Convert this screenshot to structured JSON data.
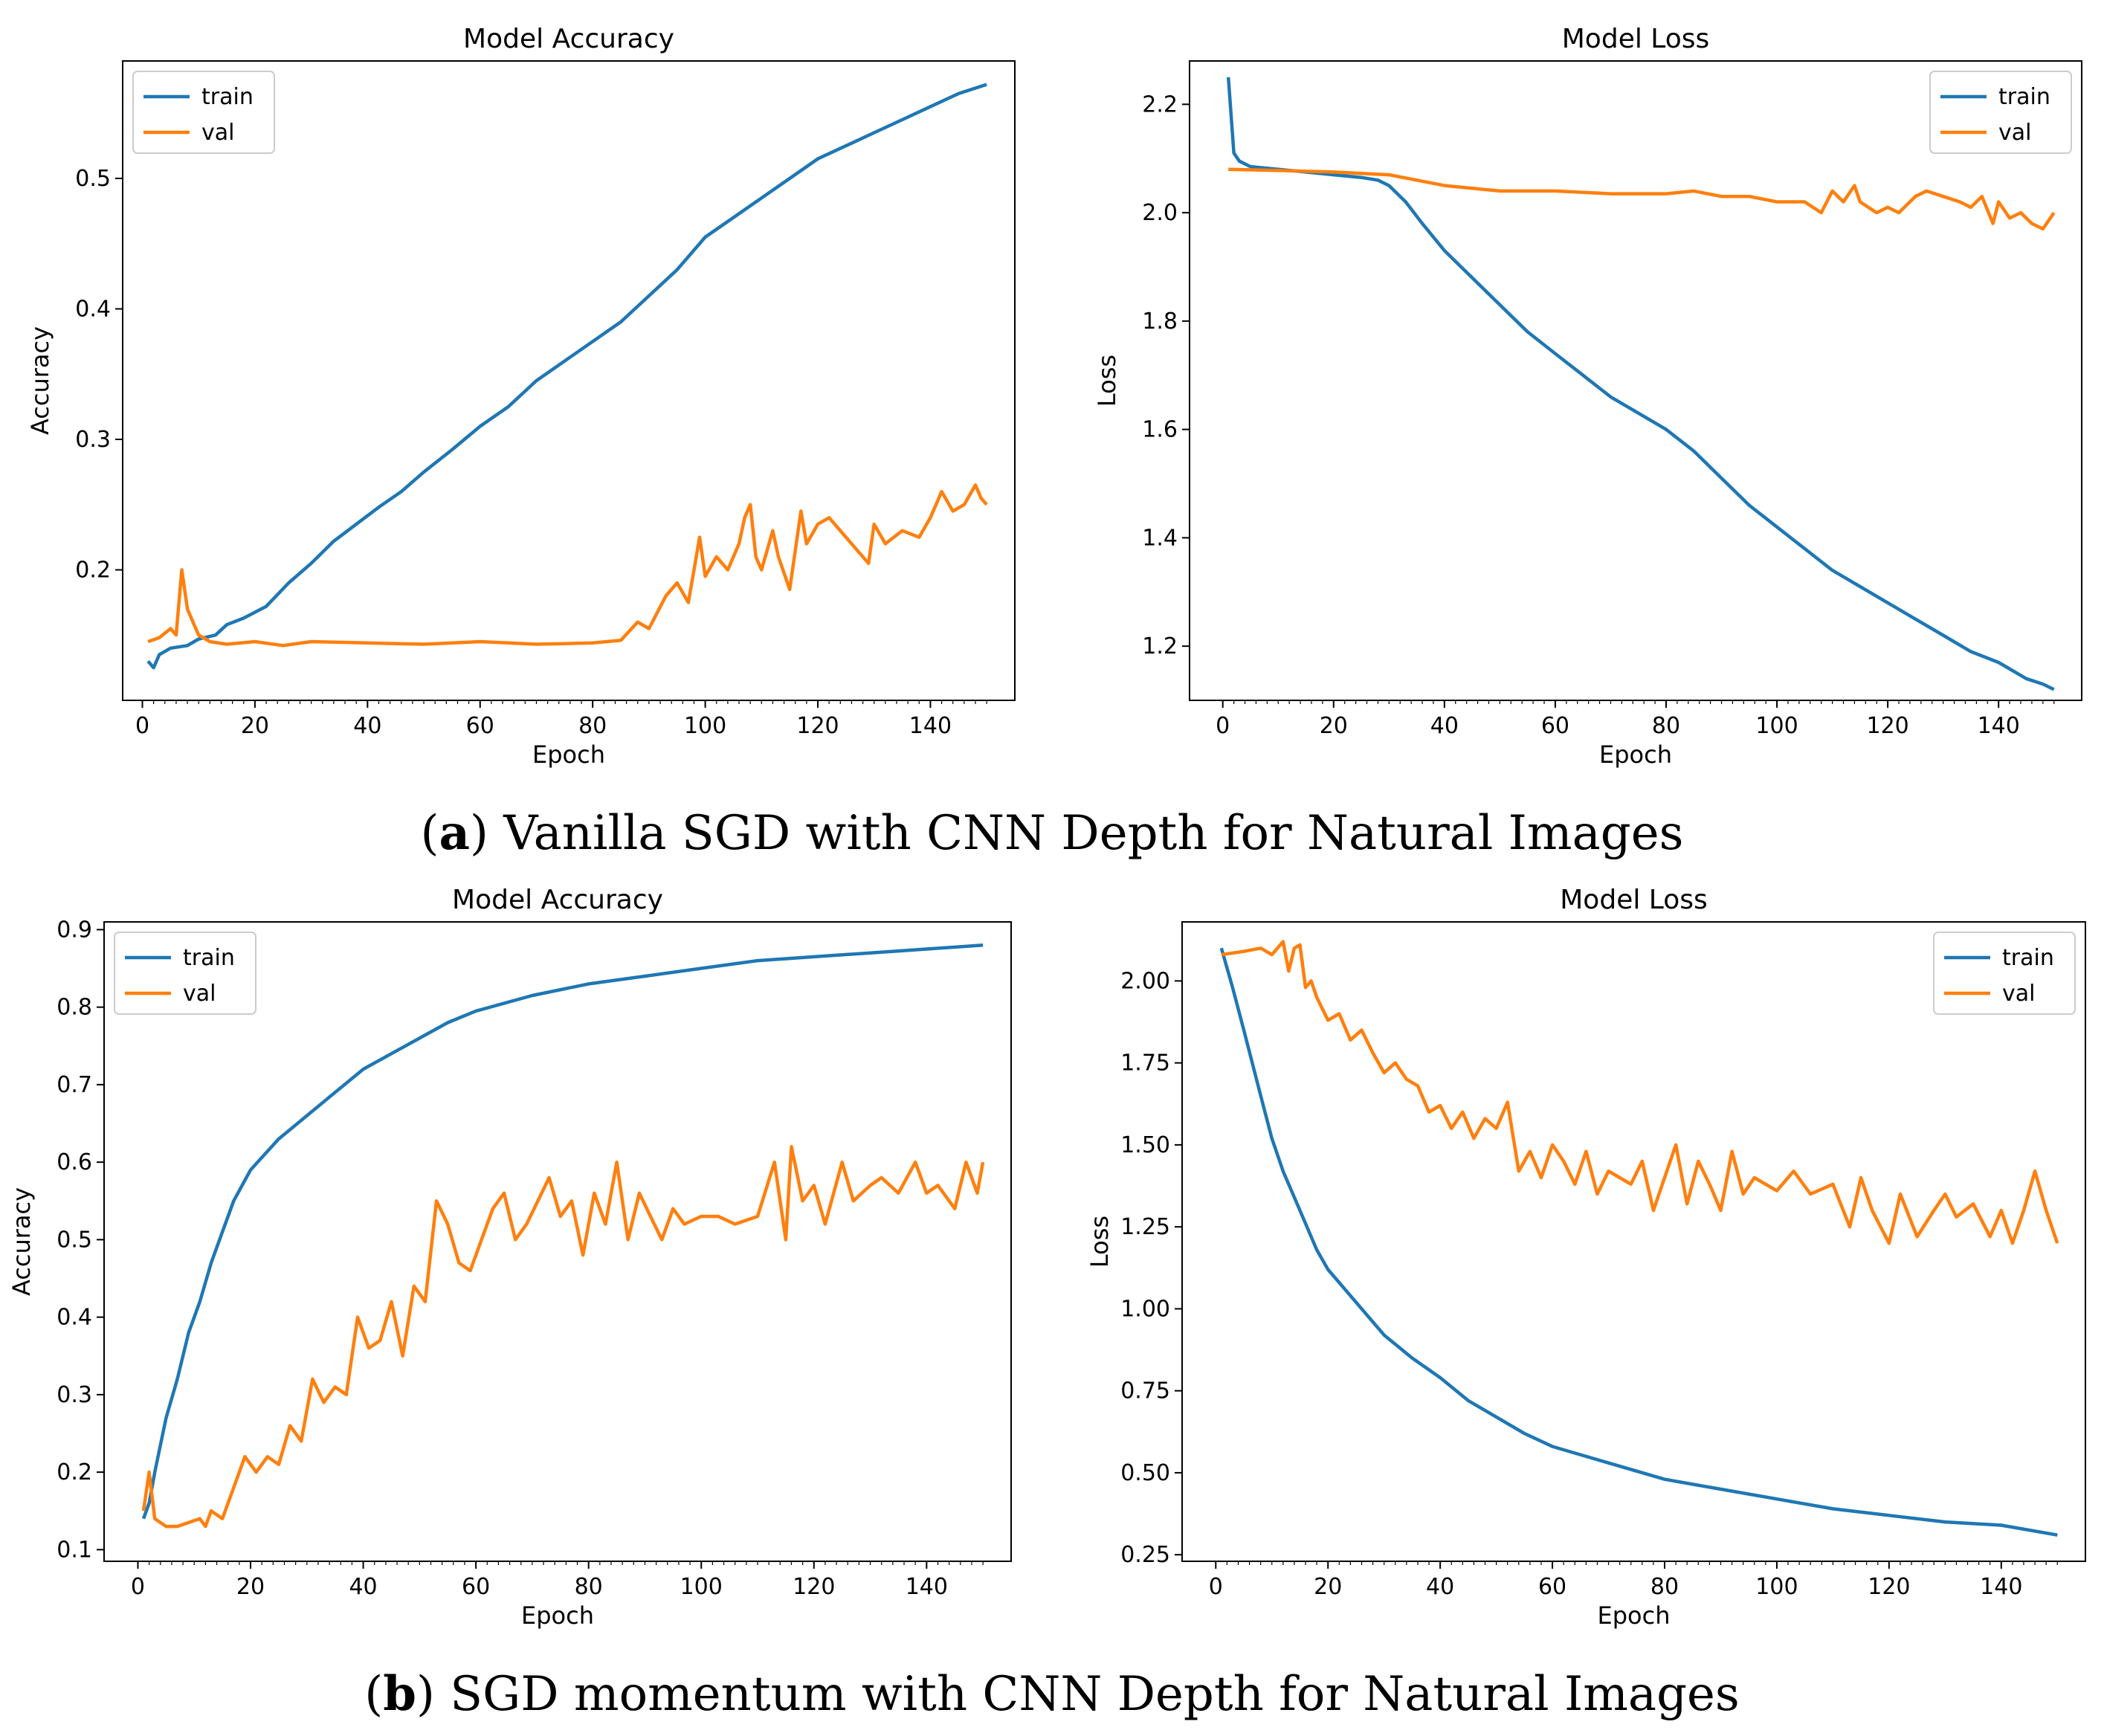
{
  "captions": {
    "a": {
      "letter": "a",
      "text": " Vanilla SGD with CNN Depth for Natural Images"
    },
    "b": {
      "letter": "b",
      "text": " SGD momentum with CNN Depth for Natural Images"
    }
  },
  "colors": {
    "train": "#1f77b4",
    "val": "#ff7f0e"
  },
  "chart_data": [
    {
      "id": "a-accuracy",
      "type": "line",
      "title": "Model Accuracy",
      "xlabel": "Epoch",
      "ylabel": "Accuracy",
      "xlim": [
        -3.5,
        155
      ],
      "ylim": [
        0.1,
        0.59
      ],
      "xticks": [
        0,
        20,
        40,
        60,
        80,
        100,
        120,
        140
      ],
      "yticks": [
        0.2,
        0.3,
        0.4,
        0.5
      ],
      "ytick_labels": [
        "0.2",
        "0.3",
        "0.4",
        "0.5"
      ],
      "legend": "upper-left",
      "series": [
        {
          "name": "train",
          "x": [
            1,
            2,
            3,
            5,
            8,
            10,
            13,
            15,
            18,
            22,
            26,
            30,
            34,
            38,
            42,
            46,
            50,
            55,
            60,
            65,
            70,
            75,
            80,
            85,
            90,
            95,
            100,
            105,
            110,
            115,
            120,
            125,
            130,
            135,
            140,
            145,
            150
          ],
          "y": [
            0.13,
            0.125,
            0.135,
            0.14,
            0.142,
            0.147,
            0.15,
            0.158,
            0.163,
            0.172,
            0.19,
            0.205,
            0.222,
            0.235,
            0.248,
            0.26,
            0.275,
            0.292,
            0.31,
            0.325,
            0.345,
            0.36,
            0.375,
            0.39,
            0.41,
            0.43,
            0.455,
            0.47,
            0.485,
            0.5,
            0.515,
            0.525,
            0.535,
            0.545,
            0.555,
            0.565,
            0.572
          ]
        },
        {
          "name": "val",
          "x": [
            1,
            3,
            5,
            6,
            7,
            8,
            9,
            10,
            12,
            15,
            20,
            25,
            30,
            40,
            50,
            60,
            70,
            80,
            85,
            88,
            90,
            93,
            95,
            97,
            98,
            99,
            100,
            102,
            104,
            106,
            107,
            108,
            109,
            110,
            112,
            113,
            115,
            117,
            118,
            120,
            122,
            125,
            127,
            129,
            130,
            132,
            135,
            138,
            140,
            142,
            144,
            146,
            148,
            149,
            150
          ],
          "y": [
            0.145,
            0.148,
            0.155,
            0.15,
            0.2,
            0.17,
            0.16,
            0.15,
            0.145,
            0.143,
            0.145,
            0.142,
            0.145,
            0.144,
            0.143,
            0.145,
            0.143,
            0.144,
            0.146,
            0.16,
            0.155,
            0.18,
            0.19,
            0.175,
            0.2,
            0.225,
            0.195,
            0.21,
            0.2,
            0.22,
            0.24,
            0.25,
            0.21,
            0.2,
            0.23,
            0.21,
            0.185,
            0.245,
            0.22,
            0.235,
            0.24,
            0.225,
            0.215,
            0.205,
            0.235,
            0.22,
            0.23,
            0.225,
            0.24,
            0.26,
            0.245,
            0.25,
            0.265,
            0.255,
            0.25
          ]
        }
      ]
    },
    {
      "id": "a-loss",
      "type": "line",
      "title": "Model Loss",
      "xlabel": "Epoch",
      "ylabel": "Loss",
      "xlim": [
        -6,
        155
      ],
      "ylim": [
        1.1,
        2.28
      ],
      "xticks": [
        0,
        20,
        40,
        60,
        80,
        100,
        120,
        140
      ],
      "yticks": [
        1.2,
        1.4,
        1.6,
        1.8,
        2.0,
        2.2
      ],
      "ytick_labels": [
        "1.2",
        "1.4",
        "1.6",
        "1.8",
        "2.0",
        "2.2"
      ],
      "legend": "upper-right",
      "series": [
        {
          "name": "train",
          "x": [
            1,
            2,
            3,
            5,
            10,
            15,
            20,
            25,
            28,
            30,
            33,
            36,
            40,
            45,
            50,
            55,
            60,
            65,
            70,
            75,
            80,
            85,
            90,
            95,
            100,
            105,
            110,
            115,
            120,
            125,
            130,
            135,
            140,
            145,
            148,
            150
          ],
          "y": [
            2.25,
            2.11,
            2.095,
            2.085,
            2.08,
            2.075,
            2.07,
            2.065,
            2.06,
            2.05,
            2.02,
            1.98,
            1.93,
            1.88,
            1.83,
            1.78,
            1.74,
            1.7,
            1.66,
            1.63,
            1.6,
            1.56,
            1.51,
            1.46,
            1.42,
            1.38,
            1.34,
            1.31,
            1.28,
            1.25,
            1.22,
            1.19,
            1.17,
            1.14,
            1.13,
            1.12
          ]
        },
        {
          "name": "val",
          "x": [
            1,
            10,
            20,
            30,
            35,
            40,
            50,
            60,
            70,
            80,
            85,
            90,
            95,
            100,
            105,
            108,
            110,
            112,
            114,
            115,
            118,
            120,
            122,
            125,
            127,
            130,
            133,
            135,
            137,
            139,
            140,
            142,
            144,
            146,
            148,
            150
          ],
          "y": [
            2.08,
            2.078,
            2.075,
            2.07,
            2.06,
            2.05,
            2.04,
            2.04,
            2.035,
            2.035,
            2.04,
            2.03,
            2.03,
            2.02,
            2.02,
            2.0,
            2.04,
            2.02,
            2.05,
            2.02,
            2.0,
            2.01,
            2.0,
            2.03,
            2.04,
            2.03,
            2.02,
            2.01,
            2.03,
            1.98,
            2.02,
            1.99,
            2.0,
            1.98,
            1.97,
            2.0
          ]
        }
      ]
    },
    {
      "id": "b-accuracy",
      "type": "line",
      "title": "Model Accuracy",
      "xlabel": "Epoch",
      "ylabel": "Accuracy",
      "xlim": [
        -6,
        155
      ],
      "ylim": [
        0.085,
        0.91
      ],
      "xticks": [
        0,
        20,
        40,
        60,
        80,
        100,
        120,
        140
      ],
      "yticks": [
        0.1,
        0.2,
        0.3,
        0.4,
        0.5,
        0.6,
        0.7,
        0.8,
        0.9
      ],
      "ytick_labels": [
        "0.1",
        "0.2",
        "0.3",
        "0.4",
        "0.5",
        "0.6",
        "0.7",
        "0.8",
        "0.9"
      ],
      "legend": "upper-left",
      "series": [
        {
          "name": "train",
          "x": [
            1,
            2,
            3,
            5,
            7,
            9,
            11,
            13,
            15,
            17,
            20,
            25,
            30,
            35,
            40,
            45,
            50,
            55,
            60,
            70,
            80,
            90,
            100,
            110,
            120,
            130,
            140,
            150
          ],
          "y": [
            0.14,
            0.16,
            0.2,
            0.27,
            0.32,
            0.38,
            0.42,
            0.47,
            0.51,
            0.55,
            0.59,
            0.63,
            0.66,
            0.69,
            0.72,
            0.74,
            0.76,
            0.78,
            0.795,
            0.815,
            0.83,
            0.84,
            0.85,
            0.86,
            0.865,
            0.87,
            0.875,
            0.88
          ]
        },
        {
          "name": "val",
          "x": [
            1,
            2,
            3,
            5,
            7,
            9,
            11,
            12,
            13,
            15,
            17,
            19,
            21,
            23,
            25,
            27,
            29,
            31,
            33,
            35,
            37,
            39,
            41,
            43,
            45,
            47,
            49,
            51,
            53,
            55,
            57,
            59,
            61,
            63,
            65,
            67,
            69,
            71,
            73,
            75,
            77,
            79,
            81,
            83,
            85,
            87,
            89,
            91,
            93,
            95,
            97,
            100,
            103,
            106,
            110,
            113,
            115,
            116,
            118,
            120,
            122,
            125,
            127,
            130,
            132,
            135,
            138,
            140,
            142,
            145,
            147,
            149,
            150
          ],
          "y": [
            0.15,
            0.2,
            0.14,
            0.13,
            0.13,
            0.135,
            0.14,
            0.13,
            0.15,
            0.14,
            0.18,
            0.22,
            0.2,
            0.22,
            0.21,
            0.26,
            0.24,
            0.32,
            0.29,
            0.31,
            0.3,
            0.4,
            0.36,
            0.37,
            0.42,
            0.35,
            0.44,
            0.42,
            0.55,
            0.52,
            0.47,
            0.46,
            0.5,
            0.54,
            0.56,
            0.5,
            0.52,
            0.55,
            0.58,
            0.53,
            0.55,
            0.48,
            0.56,
            0.52,
            0.6,
            0.5,
            0.56,
            0.53,
            0.5,
            0.54,
            0.52,
            0.53,
            0.53,
            0.52,
            0.53,
            0.6,
            0.5,
            0.62,
            0.55,
            0.57,
            0.52,
            0.6,
            0.55,
            0.57,
            0.58,
            0.56,
            0.6,
            0.56,
            0.57,
            0.54,
            0.6,
            0.56,
            0.6
          ]
        }
      ]
    },
    {
      "id": "b-loss",
      "type": "line",
      "title": "Model Loss",
      "xlabel": "Epoch",
      "ylabel": "Loss",
      "xlim": [
        -6,
        155
      ],
      "ylim": [
        0.23,
        2.18
      ],
      "xticks": [
        0,
        20,
        40,
        60,
        80,
        100,
        120,
        140
      ],
      "yticks": [
        0.25,
        0.5,
        0.75,
        1.0,
        1.25,
        1.5,
        1.75,
        2.0
      ],
      "ytick_labels": [
        "0.25",
        "0.50",
        "0.75",
        "1.00",
        "1.25",
        "1.50",
        "1.75",
        "2.00"
      ],
      "legend": "upper-right",
      "series": [
        {
          "name": "train",
          "x": [
            1,
            3,
            5,
            8,
            10,
            12,
            15,
            18,
            20,
            25,
            30,
            35,
            40,
            45,
            50,
            55,
            60,
            70,
            80,
            90,
            100,
            110,
            120,
            130,
            140,
            150
          ],
          "y": [
            2.1,
            1.98,
            1.85,
            1.65,
            1.52,
            1.42,
            1.3,
            1.18,
            1.12,
            1.02,
            0.92,
            0.85,
            0.79,
            0.72,
            0.67,
            0.62,
            0.58,
            0.53,
            0.48,
            0.45,
            0.42,
            0.39,
            0.37,
            0.35,
            0.34,
            0.31
          ]
        },
        {
          "name": "val",
          "x": [
            1,
            5,
            8,
            10,
            12,
            13,
            14,
            15,
            16,
            17,
            18,
            20,
            22,
            24,
            26,
            28,
            30,
            32,
            34,
            36,
            38,
            40,
            42,
            44,
            46,
            48,
            50,
            52,
            54,
            56,
            58,
            60,
            62,
            64,
            66,
            68,
            70,
            72,
            74,
            76,
            78,
            80,
            82,
            84,
            86,
            88,
            90,
            92,
            94,
            96,
            98,
            100,
            103,
            106,
            110,
            113,
            115,
            117,
            120,
            122,
            125,
            128,
            130,
            132,
            135,
            138,
            140,
            142,
            144,
            146,
            148,
            150
          ],
          "y": [
            2.08,
            2.09,
            2.1,
            2.08,
            2.12,
            2.03,
            2.1,
            2.11,
            1.98,
            2.0,
            1.95,
            1.88,
            1.9,
            1.82,
            1.85,
            1.78,
            1.72,
            1.75,
            1.7,
            1.68,
            1.6,
            1.62,
            1.55,
            1.6,
            1.52,
            1.58,
            1.55,
            1.63,
            1.42,
            1.48,
            1.4,
            1.5,
            1.45,
            1.38,
            1.48,
            1.35,
            1.42,
            1.4,
            1.38,
            1.45,
            1.3,
            1.4,
            1.5,
            1.32,
            1.45,
            1.38,
            1.3,
            1.48,
            1.35,
            1.4,
            1.38,
            1.36,
            1.42,
            1.35,
            1.38,
            1.25,
            1.4,
            1.3,
            1.2,
            1.35,
            1.22,
            1.3,
            1.35,
            1.28,
            1.32,
            1.22,
            1.3,
            1.2,
            1.3,
            1.42,
            1.3,
            1.2
          ]
        }
      ]
    }
  ]
}
